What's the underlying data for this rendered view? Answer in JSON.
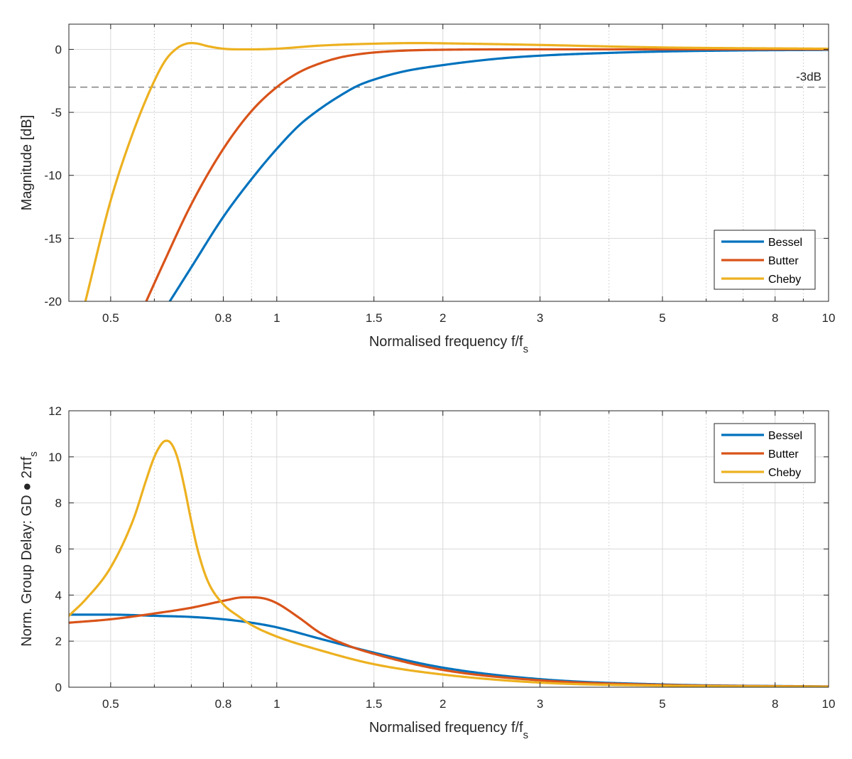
{
  "colors": {
    "bessel": "#0072BD",
    "butter": "#D95319",
    "cheby": "#EDB120",
    "grid": "#d9d9d9",
    "minor_grid": "#c8c8c8",
    "axes": "#262626",
    "ref_line": "#808080"
  },
  "chart_data": [
    {
      "type": "line",
      "xscale": "log",
      "xlabel": "Normalised frequency f/f",
      "xlabel_sub": "s",
      "ylabel": "Magnitude [dB]",
      "xlim": [
        0.42,
        10
      ],
      "ylim": [
        -20,
        2
      ],
      "xticks": [
        0.5,
        0.8,
        1,
        1.5,
        2,
        3,
        5,
        8,
        10
      ],
      "xtick_labels": [
        "0.5",
        "0.8",
        "1",
        "1.5",
        "2",
        "3",
        "5",
        "8",
        "10"
      ],
      "x_minor_ticks": [
        0.6,
        0.7,
        0.9,
        4,
        6,
        7,
        9
      ],
      "yticks": [
        0,
        -5,
        -10,
        -15,
        -20
      ],
      "ytick_labels": [
        "0",
        "-5",
        "-10",
        "-15",
        "-20"
      ],
      "grid": true,
      "legend_position": "bottom-right",
      "reference_line": {
        "y": -3,
        "label": "-3dB"
      },
      "series": [
        {
          "name": "Bessel",
          "color_key": "bessel",
          "x": [
            0.64,
            0.7,
            0.8,
            0.9,
            1.0,
            1.1,
            1.2,
            1.3,
            1.4,
            1.5,
            1.7,
            2.0,
            2.5,
            3.0,
            4.0,
            5.0,
            7.0,
            10.0
          ],
          "y": [
            -20,
            -17.3,
            -13.3,
            -10.3,
            -7.9,
            -6.0,
            -4.7,
            -3.7,
            -2.9,
            -2.4,
            -1.75,
            -1.25,
            -0.75,
            -0.5,
            -0.28,
            -0.17,
            -0.08,
            -0.04
          ]
        },
        {
          "name": "Butter",
          "color_key": "butter",
          "x": [
            0.58,
            0.62,
            0.7,
            0.8,
            0.9,
            1.0,
            1.1,
            1.2,
            1.3,
            1.4,
            1.5,
            1.7,
            2.0,
            3.0,
            10.0
          ],
          "y": [
            -20,
            -17.2,
            -12.3,
            -7.9,
            -4.9,
            -3.0,
            -1.8,
            -1.1,
            -0.65,
            -0.4,
            -0.25,
            -0.1,
            -0.03,
            0,
            0
          ]
        },
        {
          "name": "Cheby",
          "color_key": "cheby",
          "x": [
            0.45,
            0.5,
            0.55,
            0.6,
            0.63,
            0.66,
            0.68,
            0.7,
            0.72,
            0.75,
            0.8,
            0.85,
            0.9,
            1.0,
            1.2,
            1.5,
            1.8,
            2.0,
            3.0,
            5.0,
            10.0
          ],
          "y": [
            -20,
            -12.0,
            -6.5,
            -2.5,
            -0.8,
            0.1,
            0.4,
            0.5,
            0.45,
            0.25,
            0.05,
            0.0,
            0.0,
            0.05,
            0.3,
            0.45,
            0.5,
            0.48,
            0.35,
            0.15,
            0.05
          ]
        }
      ]
    },
    {
      "type": "line",
      "xscale": "log",
      "xlabel": "Normalised frequency f/f",
      "xlabel_sub": "s",
      "ylabel": "Norm. Group Delay: GD ● 2πf",
      "ylabel_sub": "s",
      "xlim": [
        0.42,
        10
      ],
      "ylim": [
        0,
        12
      ],
      "xticks": [
        0.5,
        0.8,
        1,
        1.5,
        2,
        3,
        5,
        8,
        10
      ],
      "xtick_labels": [
        "0.5",
        "0.8",
        "1",
        "1.5",
        "2",
        "3",
        "5",
        "8",
        "10"
      ],
      "x_minor_ticks": [
        0.6,
        0.7,
        0.9,
        4,
        6,
        7,
        9
      ],
      "yticks": [
        0,
        2,
        4,
        6,
        8,
        10,
        12
      ],
      "ytick_labels": [
        "0",
        "2",
        "4",
        "6",
        "8",
        "10",
        "12"
      ],
      "grid": true,
      "legend_position": "top-right",
      "series": [
        {
          "name": "Bessel",
          "color_key": "bessel",
          "x": [
            0.42,
            0.5,
            0.6,
            0.7,
            0.8,
            0.9,
            1.0,
            1.2,
            1.5,
            2.0,
            3.0,
            5.0,
            10.0
          ],
          "y": [
            3.15,
            3.15,
            3.1,
            3.05,
            2.95,
            2.8,
            2.6,
            2.1,
            1.5,
            0.85,
            0.35,
            0.12,
            0.03
          ]
        },
        {
          "name": "Butter",
          "color_key": "butter",
          "x": [
            0.42,
            0.5,
            0.6,
            0.7,
            0.8,
            0.87,
            0.9,
            0.95,
            1.0,
            1.1,
            1.2,
            1.35,
            1.5,
            2.0,
            3.0,
            5.0,
            10.0
          ],
          "y": [
            2.8,
            2.95,
            3.2,
            3.45,
            3.75,
            3.9,
            3.9,
            3.85,
            3.65,
            3.0,
            2.35,
            1.8,
            1.45,
            0.75,
            0.3,
            0.1,
            0.03
          ]
        },
        {
          "name": "Cheby",
          "color_key": "cheby",
          "x": [
            0.42,
            0.45,
            0.5,
            0.55,
            0.58,
            0.6,
            0.62,
            0.63,
            0.64,
            0.66,
            0.68,
            0.7,
            0.72,
            0.75,
            0.8,
            0.85,
            0.9,
            1.0,
            1.2,
            1.5,
            2.0,
            3.0,
            5.0,
            10.0
          ],
          "y": [
            3.1,
            3.8,
            5.2,
            7.3,
            9.0,
            10.0,
            10.6,
            10.7,
            10.65,
            10.0,
            8.7,
            7.2,
            5.9,
            4.6,
            3.6,
            3.1,
            2.7,
            2.2,
            1.6,
            1.0,
            0.55,
            0.2,
            0.07,
            0.02
          ]
        }
      ]
    }
  ]
}
